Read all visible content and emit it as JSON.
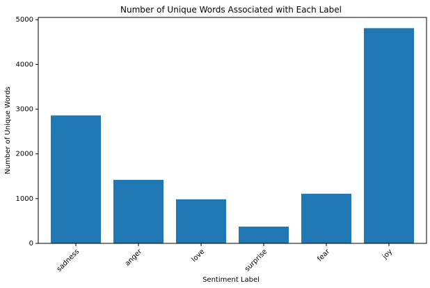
{
  "chart_data": {
    "type": "bar",
    "title": "Number of Unique Words Associated with Each Label",
    "xlabel": "Sentiment Label",
    "ylabel": "Number of Unique Words",
    "categories": [
      "sadness",
      "anger",
      "love",
      "surprise",
      "fear",
      "joy"
    ],
    "values": [
      2860,
      1420,
      985,
      375,
      1110,
      4810
    ],
    "ylim": [
      0,
      5050
    ],
    "yticks": [
      0,
      1000,
      2000,
      3000,
      4000,
      5000
    ],
    "bar_color": "#1f77b4",
    "grid": false,
    "legend": "none"
  }
}
